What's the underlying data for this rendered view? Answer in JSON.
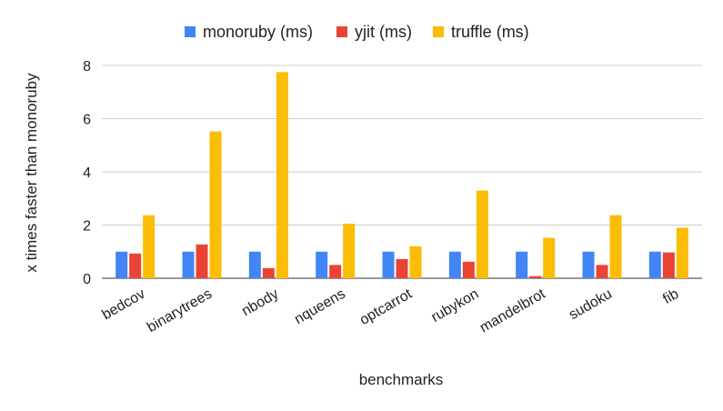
{
  "chart_data": {
    "type": "bar",
    "title": "",
    "xlabel": "benchmarks",
    "ylabel": "x times faster than monoruby",
    "ylim": [
      0,
      8
    ],
    "yticks": [
      0,
      2,
      4,
      6,
      8
    ],
    "grid": true,
    "legend_position": "top",
    "categories": [
      "bedcov",
      "binarytrees",
      "nbody",
      "nqueens",
      "optcarrot",
      "rubykon",
      "mandelbrot",
      "sudoku",
      "fib"
    ],
    "series": [
      {
        "name": "monoruby (ms)",
        "color": "#4285F4",
        "values": [
          1,
          1,
          1,
          1,
          1,
          1,
          1,
          1,
          1
        ]
      },
      {
        "name": "yjit (ms)",
        "color": "#EA4335",
        "values": [
          0.93,
          1.27,
          0.38,
          0.5,
          0.72,
          0.62,
          0.08,
          0.5,
          0.97
        ]
      },
      {
        "name": "truffle (ms)",
        "color": "#FBBC04",
        "values": [
          2.37,
          5.52,
          7.75,
          2.05,
          1.2,
          3.3,
          1.52,
          2.37,
          1.9
        ]
      }
    ]
  }
}
